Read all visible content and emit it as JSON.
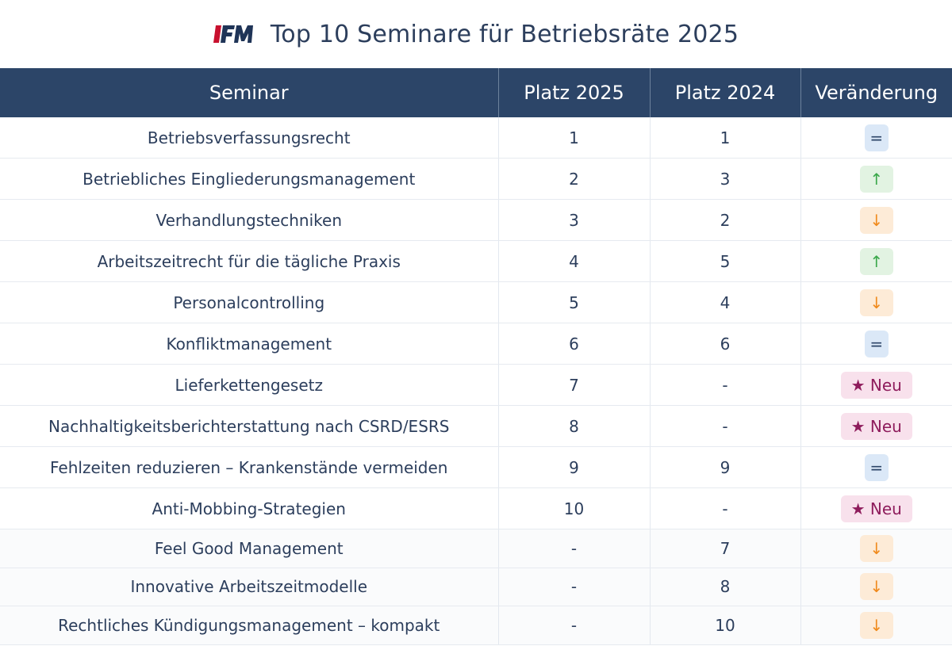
{
  "header": {
    "logo_text": "IFM",
    "title": "Top 10 Seminare für Betriebsräte 2025"
  },
  "colors": {
    "header_bg": "#2c4568",
    "logo_red": "#c8102e",
    "logo_navy": "#1f3457",
    "same": "#dbe8f7",
    "up": "#3aa84a",
    "down": "#f08a1c",
    "new": "#8e1c5c"
  },
  "table": {
    "columns": [
      "Seminar",
      "Platz 2025",
      "Platz 2024",
      "Veränderung"
    ],
    "rows": [
      {
        "seminar": "Betriebsverfassungsrecht",
        "platz2025": "1",
        "platz2024": "1",
        "change": "=",
        "type": "eq"
      },
      {
        "seminar": "Betriebliches Eingliederungsmanagement",
        "platz2025": "2",
        "platz2024": "3",
        "change": "↑",
        "type": "up"
      },
      {
        "seminar": "Verhandlungstechniken",
        "platz2025": "3",
        "platz2024": "2",
        "change": "↓",
        "type": "down"
      },
      {
        "seminar": "Arbeitszeitrecht für die tägliche Praxis",
        "platz2025": "4",
        "platz2024": "5",
        "change": "↑",
        "type": "up"
      },
      {
        "seminar": "Personalcontrolling",
        "platz2025": "5",
        "platz2024": "4",
        "change": "↓",
        "type": "down"
      },
      {
        "seminar": "Konfliktmanagement",
        "platz2025": "6",
        "platz2024": "6",
        "change": "=",
        "type": "eq"
      },
      {
        "seminar": "Lieferkettengesetz",
        "platz2025": "7",
        "platz2024": "-",
        "change": "★ Neu",
        "type": "new"
      },
      {
        "seminar": "Nachhaltigkeitsberichterstattung nach CSRD/ESRS",
        "platz2025": "8",
        "platz2024": "-",
        "change": "★ Neu",
        "type": "new"
      },
      {
        "seminar": "Fehlzeiten reduzieren – Krankenstände vermeiden",
        "platz2025": "9",
        "platz2024": "9",
        "change": "=",
        "type": "eq"
      },
      {
        "seminar": "Anti-Mobbing-Strategien",
        "platz2025": "10",
        "platz2024": "-",
        "change": "★ Neu",
        "type": "new"
      }
    ],
    "dropped_rows": [
      {
        "seminar": "Feel Good Management",
        "platz2025": "-",
        "platz2024": "7",
        "change": "↓",
        "type": "down"
      },
      {
        "seminar": "Innovative Arbeitszeitmodelle",
        "platz2025": "-",
        "platz2024": "8",
        "change": "↓",
        "type": "down"
      },
      {
        "seminar": "Rechtliches Kündigungsmanagement – kompakt",
        "platz2025": "-",
        "platz2024": "10",
        "change": "↓",
        "type": "down"
      }
    ]
  }
}
